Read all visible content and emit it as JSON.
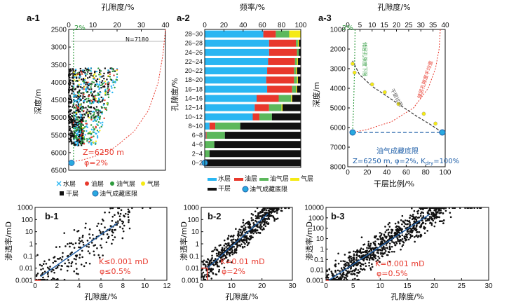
{
  "chart_data": [
    {
      "id": "a1",
      "panel": "a-1",
      "type": "scatter",
      "xlabel": "孔隙度/%",
      "ylabel": "深度/m",
      "xlim": [
        0,
        40
      ],
      "ylim": [
        6500,
        2500
      ],
      "xticks": [
        "0",
        "10",
        "20",
        "30",
        "40"
      ],
      "yticks": [
        "2500",
        "3000",
        "3500",
        "4000",
        "4500",
        "5000",
        "5500",
        "6000",
        "6500"
      ],
      "n_label": "N=7180",
      "two_percent": "2%",
      "annotation_depth": "Z=6250 m",
      "annotation_phi": "φ=2%",
      "cluster_depth_range": [
        3600,
        5800
      ],
      "cluster_porosity_range": [
        0,
        20
      ],
      "floor_point": {
        "x": 0.3,
        "y": 6250
      },
      "red_curve": [
        [
          40,
          2500
        ],
        [
          39,
          3200
        ],
        [
          37,
          4000
        ],
        [
          33,
          4800
        ],
        [
          27,
          5400
        ],
        [
          19,
          5850
        ],
        [
          11,
          6100
        ],
        [
          5,
          6220
        ],
        [
          2,
          6250
        ]
      ],
      "legend": [
        {
          "symbol": "x-cyan",
          "label": "水层"
        },
        {
          "symbol": "dot-red",
          "label": "油层"
        },
        {
          "symbol": "dot-green",
          "label": "油气层"
        },
        {
          "symbol": "dot-yellow",
          "label": "气层"
        },
        {
          "symbol": "square-black",
          "label": "干层"
        },
        {
          "symbol": "circle-blue",
          "label": "油气成藏底限"
        }
      ]
    },
    {
      "id": "a2",
      "panel": "a-2",
      "type": "bar",
      "title": "频率/%",
      "ylabel": "孔隙度/%",
      "xlim": [
        0,
        100
      ],
      "xticks": [
        "0",
        "20",
        "40",
        "60",
        "80",
        "100"
      ],
      "categories": [
        "0~2",
        "2~4",
        "4~6",
        "6~8",
        "8~10",
        "10~12",
        "12~14",
        "14~16",
        "16~18",
        "18~20",
        "20~22",
        "22~24",
        "24~26",
        "26~28",
        "28~30"
      ],
      "series": [
        {
          "name": "水层",
          "color": "#29b6f2",
          "values": [
            0,
            0,
            0,
            1,
            5,
            50,
            52,
            54,
            65,
            64,
            65,
            66,
            67,
            67,
            61
          ]
        },
        {
          "name": "油层",
          "color": "#e8382c",
          "values": [
            0,
            0,
            0,
            1,
            6,
            7,
            15,
            23,
            26,
            29,
            28,
            28,
            29,
            28,
            13
          ]
        },
        {
          "name": "油气层",
          "color": "#5cb85c",
          "values": [
            0,
            5,
            10,
            19,
            26,
            13,
            13,
            13,
            4,
            3,
            2,
            2,
            2,
            2,
            14
          ]
        },
        {
          "name": "气层",
          "color": "#f5ea14",
          "values": [
            0,
            0,
            0,
            0,
            0,
            0,
            1,
            1,
            1,
            1,
            1,
            1,
            0,
            1,
            12
          ]
        },
        {
          "name": "干层",
          "color": "#111111",
          "values": [
            100,
            95,
            90,
            79,
            63,
            30,
            19,
            9,
            4,
            3,
            4,
            3,
            2,
            2,
            0
          ]
        }
      ],
      "floor_marker": "0~2"
    },
    {
      "id": "a3",
      "panel": "a-3",
      "type": "line",
      "xlabel_top": "孔隙度/%",
      "xlabel_bottom": "干层比例/%",
      "ylabel": "深度/m",
      "top_axis_lim": [
        0,
        40
      ],
      "top_ticks": [
        "0",
        "5",
        "10",
        "15",
        "20",
        "25",
        "30",
        "35",
        "40"
      ],
      "bottom_axis_lim": [
        0,
        100
      ],
      "bottom_ticks": [
        "0",
        "20",
        "40",
        "60",
        "80",
        "100"
      ],
      "ylim": [
        8000,
        1000
      ],
      "yticks": [
        "1000",
        "2000",
        "3000",
        "4000",
        "5000",
        "6000",
        "7000",
        "8000"
      ],
      "two_percent": "2%",
      "curve_label_green": "储层孔隙度下限",
      "curve_label_gray": "干层比例",
      "curve_label_red": "储层孔隙度平均值",
      "limit_label": "油气成藏底限",
      "annotation": "Z=6250 m, φ=2%, Kdry=100%",
      "gray_points": [
        [
          5,
          2750
        ],
        [
          7,
          3200
        ],
        [
          25,
          3800
        ],
        [
          38,
          4200
        ],
        [
          52,
          4800
        ],
        [
          78,
          5300
        ],
        [
          90,
          5800
        ],
        [
          97,
          6200
        ]
      ],
      "green_curve_top": [
        [
          3,
          1000
        ],
        [
          2.9,
          2000
        ],
        [
          2.8,
          3000
        ],
        [
          2.6,
          4000
        ],
        [
          2.4,
          5000
        ],
        [
          2.1,
          5800
        ],
        [
          2,
          6250
        ]
      ],
      "red_curve_top": [
        [
          38,
          1000
        ],
        [
          37.5,
          2000
        ],
        [
          36,
          3000
        ],
        [
          33,
          4000
        ],
        [
          27,
          5000
        ],
        [
          18,
          5700
        ],
        [
          8,
          6100
        ],
        [
          2,
          6250
        ]
      ],
      "gray_curve_bottom": [
        [
          5,
          2600
        ],
        [
          12,
          3300
        ],
        [
          25,
          3900
        ],
        [
          40,
          4400
        ],
        [
          55,
          4900
        ],
        [
          70,
          5400
        ],
        [
          85,
          5850
        ],
        [
          97,
          6250
        ]
      ],
      "floor_points_bottom": [
        [
          5,
          6250
        ],
        [
          97,
          6250
        ]
      ],
      "limit_depth": 6250
    },
    {
      "id": "b1",
      "panel": "b-1",
      "type": "scatter",
      "xlabel": "孔隙度/%",
      "ylabel": "渗透率/mD",
      "xlim": [
        0,
        12
      ],
      "xticks": [
        "0",
        "2",
        "4",
        "6",
        "8",
        "10",
        "12"
      ],
      "yticks": [
        "0.001",
        "0.01",
        "0.1",
        "1",
        "10",
        "100",
        "1000"
      ],
      "ylog": [
        -3,
        3
      ],
      "annotation_k": "K≤0.001 mD",
      "annotation_phi": "φ≤0.5%",
      "fit_line": [
        [
          0.5,
          0.002
        ],
        [
          7.5,
          50
        ]
      ],
      "cutoff": {
        "x": 0.5,
        "y": 0.001
      }
    },
    {
      "id": "b2",
      "panel": "b-2",
      "type": "scatter",
      "xlabel": "孔隙度/%",
      "ylabel": "渗透率/mD",
      "xlim": [
        0,
        30
      ],
      "xticks": [
        "0",
        "10",
        "20",
        "30"
      ],
      "yticks": [
        "0.001",
        "0.01",
        "0.1",
        "1",
        "10",
        "100",
        "1000"
      ],
      "ylog": [
        -3,
        3
      ],
      "annotation_k": "K=0.01 mD",
      "annotation_phi": "φ=2%",
      "fit_line": [
        [
          2,
          0.01
        ],
        [
          22,
          300
        ]
      ],
      "cutoff": {
        "x": 2,
        "y": 0.01
      }
    },
    {
      "id": "b3",
      "panel": "b-3",
      "type": "scatter",
      "xlabel": "孔隙度/%",
      "ylabel": "渗透率/mD",
      "xlim": [
        0,
        30
      ],
      "xticks": [
        "0",
        "5",
        "10",
        "15",
        "20",
        "25",
        "30"
      ],
      "yticks": [
        "0.001",
        "0.01",
        "0.1",
        "1",
        "10",
        "100",
        "1000",
        "10000"
      ],
      "ylog": [
        -3,
        4
      ],
      "annotation_k": "K=0.001 mD",
      "annotation_phi": "φ=0.5%",
      "fit_line": [
        [
          0.5,
          0.001
        ],
        [
          19,
          2000
        ]
      ],
      "cutoff": {
        "x": 0.5,
        "y": 0.001
      }
    }
  ]
}
